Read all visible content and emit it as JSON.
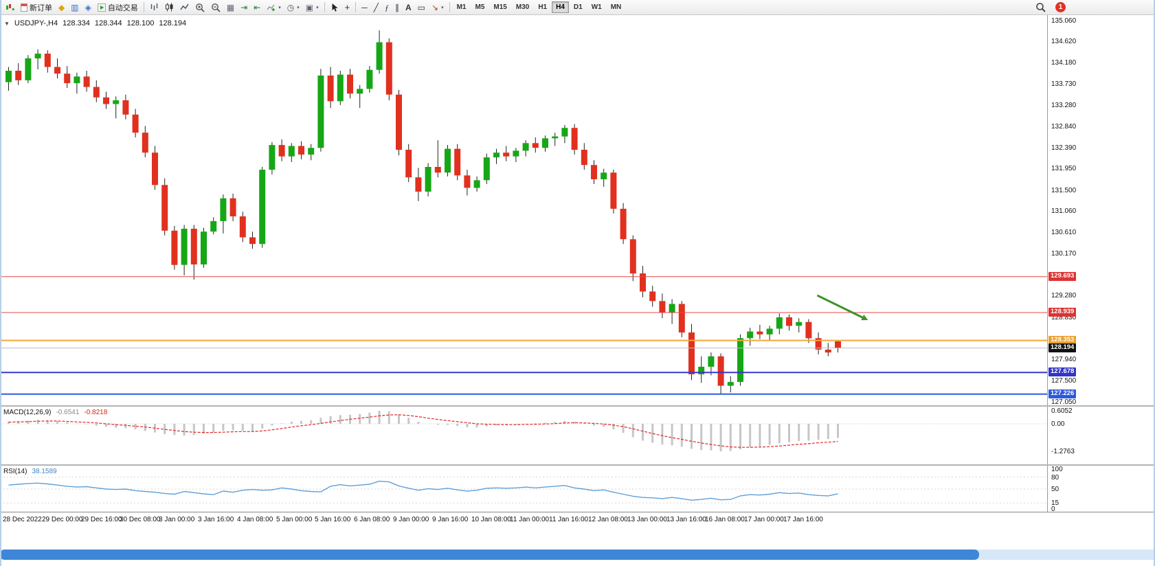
{
  "toolbar": {
    "notification_count": "1",
    "items": [
      {
        "name": "new-chart",
        "icon": "chart-plus"
      },
      {
        "name": "new-order",
        "icon": "order-doc",
        "label": "新订单"
      },
      {
        "name": "profiles",
        "icon": "profiles"
      },
      {
        "name": "market-watch",
        "icon": "market-watch"
      },
      {
        "name": "navigator",
        "icon": "navigator"
      },
      {
        "name": "auto-trading",
        "icon": "play",
        "label": "自动交易"
      },
      {
        "type": "sep"
      },
      {
        "name": "chart-bars-mode",
        "icon": "bars-mode"
      },
      {
        "name": "chart-candles-mode",
        "icon": "candles-mode"
      },
      {
        "name": "chart-line-mode",
        "icon": "line-mode"
      },
      {
        "name": "zoom-in",
        "icon": "zoom-in"
      },
      {
        "name": "zoom-out",
        "icon": "zoom-out"
      },
      {
        "name": "tile-windows",
        "icon": "tiles"
      },
      {
        "name": "auto-scroll",
        "icon": "auto-scroll"
      },
      {
        "name": "chart-shift",
        "icon": "chart-shift"
      },
      {
        "name": "indicators",
        "icon": "indicator-plus",
        "dropdown": true
      },
      {
        "name": "periods",
        "icon": "clock",
        "dropdown": true
      },
      {
        "name": "templates",
        "icon": "template",
        "dropdown": true
      },
      {
        "type": "sep"
      },
      {
        "name": "cursor",
        "icon": "cursor"
      },
      {
        "name": "crosshair",
        "icon": "crosshair"
      },
      {
        "type": "sep"
      },
      {
        "name": "horizontal-line-tool",
        "icon": "hline"
      },
      {
        "name": "trend-line-tool",
        "icon": "trendline"
      },
      {
        "name": "fibonacci-tool",
        "icon": "fibo"
      },
      {
        "name": "channel-tool",
        "icon": "channel"
      },
      {
        "name": "text-tool",
        "icon": "text"
      },
      {
        "name": "label-tool",
        "icon": "label"
      },
      {
        "name": "arrows-tool",
        "icon": "arrow",
        "dropdown": true
      },
      {
        "type": "sep"
      },
      {
        "type": "tf",
        "label": "M1"
      },
      {
        "type": "tf",
        "label": "M5"
      },
      {
        "type": "tf",
        "label": "M15"
      },
      {
        "type": "tf",
        "label": "M30"
      },
      {
        "type": "tf",
        "label": "H1"
      },
      {
        "type": "tf",
        "label": "H4",
        "active": true
      },
      {
        "type": "tf",
        "label": "D1"
      },
      {
        "type": "tf",
        "label": "W1"
      },
      {
        "type": "tf",
        "label": "MN"
      }
    ]
  },
  "chart_header": {
    "collapse_icon": "▼",
    "symbol_period": "USDJPY-,H4",
    "open": "128.334",
    "high": "128.344",
    "low": "128.100",
    "close": "128.194"
  },
  "chart_data": [
    {
      "type": "candlestick",
      "title": "USDJPY- H4",
      "ylim": [
        126.99,
        135.19
      ],
      "up_color": "#16a716",
      "down_color": "#e2301f",
      "wick_color": "#222222",
      "price_axis_labels": [
        "135.060",
        "134.620",
        "134.180",
        "133.730",
        "133.280",
        "132.840",
        "132.390",
        "131.950",
        "131.500",
        "131.060",
        "130.610",
        "130.170",
        "129.280",
        "128.830",
        "127.940",
        "127.500",
        "127.050"
      ],
      "ohlc": [
        [
          133.78,
          134.1,
          133.6,
          134.02
        ],
        [
          134.02,
          134.18,
          133.72,
          133.82
        ],
        [
          133.82,
          134.35,
          133.76,
          134.28
        ],
        [
          134.28,
          134.47,
          134.05,
          134.38
        ],
        [
          134.38,
          134.45,
          133.98,
          134.1
        ],
        [
          134.1,
          134.28,
          133.86,
          133.96
        ],
        [
          133.96,
          134.12,
          133.66,
          133.76
        ],
        [
          133.76,
          133.98,
          133.54,
          133.9
        ],
        [
          133.9,
          134.02,
          133.58,
          133.68
        ],
        [
          133.68,
          133.82,
          133.36,
          133.46
        ],
        [
          133.46,
          133.58,
          133.22,
          133.32
        ],
        [
          133.32,
          133.48,
          133.02,
          133.4
        ],
        [
          133.4,
          133.52,
          133.0,
          133.1
        ],
        [
          133.1,
          133.22,
          132.62,
          132.72
        ],
        [
          132.72,
          132.86,
          132.2,
          132.3
        ],
        [
          132.3,
          132.44,
          131.52,
          131.62
        ],
        [
          131.62,
          131.76,
          130.56,
          130.66
        ],
        [
          130.66,
          130.76,
          129.84,
          129.94
        ],
        [
          129.94,
          130.78,
          129.72,
          130.7
        ],
        [
          130.7,
          130.78,
          129.63,
          129.95
        ],
        [
          129.95,
          130.72,
          129.88,
          130.64
        ],
        [
          130.64,
          130.94,
          130.58,
          130.86
        ],
        [
          130.86,
          131.42,
          130.6,
          131.34
        ],
        [
          131.34,
          131.44,
          130.86,
          130.96
        ],
        [
          130.96,
          131.06,
          130.42,
          130.52
        ],
        [
          130.52,
          130.64,
          130.28,
          130.38
        ],
        [
          130.38,
          132.0,
          130.3,
          131.94
        ],
        [
          131.94,
          132.52,
          131.84,
          132.46
        ],
        [
          132.46,
          132.58,
          132.12,
          132.22
        ],
        [
          132.22,
          132.5,
          132.1,
          132.44
        ],
        [
          132.44,
          132.54,
          132.16,
          132.26
        ],
        [
          132.26,
          132.48,
          132.14,
          132.4
        ],
        [
          132.4,
          134.06,
          132.32,
          133.92
        ],
        [
          133.92,
          134.1,
          133.24,
          133.38
        ],
        [
          133.38,
          134.02,
          133.3,
          133.94
        ],
        [
          133.94,
          134.06,
          133.44,
          133.54
        ],
        [
          133.54,
          133.72,
          133.24,
          133.64
        ],
        [
          133.64,
          134.12,
          133.56,
          134.04
        ],
        [
          134.04,
          134.87,
          133.96,
          134.62
        ],
        [
          134.62,
          134.7,
          133.4,
          133.52
        ],
        [
          133.52,
          133.62,
          132.24,
          132.36
        ],
        [
          132.36,
          132.48,
          131.68,
          131.78
        ],
        [
          131.78,
          131.98,
          131.28,
          131.48
        ],
        [
          131.48,
          132.08,
          131.38,
          132.0
        ],
        [
          132.0,
          132.56,
          131.78,
          131.88
        ],
        [
          131.88,
          132.46,
          131.8,
          132.38
        ],
        [
          132.38,
          132.48,
          131.72,
          131.82
        ],
        [
          131.82,
          131.94,
          131.4,
          131.56
        ],
        [
          131.56,
          131.8,
          131.48,
          131.72
        ],
        [
          131.72,
          132.28,
          131.64,
          132.2
        ],
        [
          132.2,
          132.38,
          132.06,
          132.3
        ],
        [
          132.3,
          132.44,
          132.12,
          132.22
        ],
        [
          132.22,
          132.4,
          132.1,
          132.34
        ],
        [
          132.34,
          132.56,
          132.22,
          132.5
        ],
        [
          132.5,
          132.62,
          132.3,
          132.4
        ],
        [
          132.4,
          132.66,
          132.32,
          132.6
        ],
        [
          132.6,
          132.72,
          132.44,
          132.64
        ],
        [
          132.64,
          132.88,
          132.5,
          132.82
        ],
        [
          132.82,
          132.9,
          132.26,
          132.36
        ],
        [
          132.36,
          132.5,
          131.94,
          132.04
        ],
        [
          132.04,
          132.14,
          131.64,
          131.74
        ],
        [
          131.74,
          131.96,
          131.58,
          131.88
        ],
        [
          131.88,
          131.94,
          131.02,
          131.12
        ],
        [
          131.12,
          131.24,
          130.38,
          130.48
        ],
        [
          130.48,
          130.56,
          129.6,
          129.76
        ],
        [
          129.76,
          129.92,
          129.26,
          129.38
        ],
        [
          129.38,
          129.5,
          129.06,
          129.18
        ],
        [
          129.18,
          129.34,
          128.82,
          128.94
        ],
        [
          128.94,
          129.22,
          128.7,
          129.12
        ],
        [
          129.12,
          129.18,
          128.42,
          128.52
        ],
        [
          128.52,
          128.7,
          127.52,
          127.64
        ],
        [
          127.64,
          128.02,
          127.46,
          127.8
        ],
        [
          127.8,
          128.1,
          127.62,
          128.02
        ],
        [
          128.02,
          128.08,
          127.23,
          127.4
        ],
        [
          127.4,
          127.6,
          127.26,
          127.48
        ],
        [
          127.48,
          128.48,
          127.4,
          128.4
        ],
        [
          128.4,
          128.62,
          128.24,
          128.54
        ],
        [
          128.54,
          128.68,
          128.38,
          128.48
        ],
        [
          128.48,
          128.66,
          128.36,
          128.6
        ],
        [
          128.6,
          128.92,
          128.48,
          128.84
        ],
        [
          128.84,
          128.9,
          128.56,
          128.66
        ],
        [
          128.66,
          128.82,
          128.52,
          128.74
        ],
        [
          128.74,
          128.8,
          128.3,
          128.4
        ],
        [
          128.4,
          128.52,
          128.06,
          128.16
        ],
        [
          128.16,
          128.3,
          128.02,
          128.1
        ],
        [
          128.334,
          128.344,
          128.1,
          128.194
        ]
      ],
      "hlines": [
        {
          "price": 129.693,
          "label": "129.693",
          "color": "#e84545",
          "badge_color": "#dd3333",
          "width": 1
        },
        {
          "price": 128.939,
          "label": "128.939",
          "color": "#e84545",
          "badge_color": "#dd3333",
          "width": 1
        },
        {
          "price": 128.353,
          "label": "128.353",
          "color": "#f2a93b",
          "badge_color": "#eca02c",
          "width": 2
        },
        {
          "price": 128.194,
          "label": "128.194",
          "color": "#bcbcbc",
          "badge_color": "#111111",
          "width": 1
        },
        {
          "price": 127.678,
          "label": "127.678",
          "color": "#3636c9",
          "badge_color": "#3434c6",
          "width": 2
        },
        {
          "price": 127.226,
          "label": "127.226",
          "color": "#2f5bdc",
          "badge_color": "#2d59da",
          "width": 2
        }
      ],
      "arrow_annotation": {
        "from_bar": 83.2,
        "from_price": 129.3,
        "to_bar": 88.4,
        "to_price": 128.78,
        "color": "#3e9427"
      }
    },
    {
      "type": "bar",
      "name": "MACD(12,26,9)",
      "value_main": "-0.6541",
      "value_signal": "-0.8218",
      "axis_labels": [
        "0.6052",
        "0.00",
        "-1.2763"
      ],
      "histogram_color": "#c6c6c6",
      "signal_color": "#e02626",
      "histogram": [
        0.1,
        0.12,
        0.15,
        0.18,
        0.16,
        0.12,
        0.06,
        0.02,
        -0.02,
        -0.08,
        -0.14,
        -0.18,
        -0.2,
        -0.26,
        -0.33,
        -0.4,
        -0.48,
        -0.52,
        -0.55,
        -0.52,
        -0.46,
        -0.4,
        -0.32,
        -0.3,
        -0.32,
        -0.34,
        -0.22,
        -0.08,
        0.02,
        0.1,
        0.14,
        0.17,
        0.28,
        0.36,
        0.4,
        0.42,
        0.46,
        0.52,
        0.605,
        0.58,
        0.44,
        0.28,
        0.1,
        0.0,
        -0.04,
        -0.05,
        -0.1,
        -0.16,
        -0.17,
        -0.12,
        -0.07,
        -0.05,
        -0.04,
        -0.01,
        0.02,
        0.05,
        0.09,
        0.13,
        0.1,
        0.02,
        -0.08,
        -0.14,
        -0.26,
        -0.42,
        -0.62,
        -0.78,
        -0.88,
        -0.96,
        -1.0,
        -1.06,
        -1.16,
        -1.22,
        -1.23,
        -1.2763,
        -1.26,
        -1.18,
        -1.1,
        -1.05,
        -0.98,
        -0.9,
        -0.85,
        -0.8,
        -0.78,
        -0.74,
        -0.7,
        -0.6541
      ],
      "signal": [
        0.08,
        0.09,
        0.1,
        0.12,
        0.13,
        0.13,
        0.11,
        0.09,
        0.07,
        0.04,
        0.0,
        -0.04,
        -0.07,
        -0.11,
        -0.15,
        -0.2,
        -0.26,
        -0.31,
        -0.36,
        -0.39,
        -0.4,
        -0.4,
        -0.39,
        -0.37,
        -0.36,
        -0.36,
        -0.33,
        -0.28,
        -0.22,
        -0.15,
        -0.09,
        -0.04,
        0.02,
        0.09,
        0.15,
        0.21,
        0.26,
        0.31,
        0.37,
        0.41,
        0.42,
        0.39,
        0.33,
        0.26,
        0.2,
        0.15,
        0.1,
        0.05,
        0.0,
        -0.02,
        -0.03,
        -0.04,
        -0.04,
        -0.03,
        -0.02,
        -0.01,
        0.01,
        0.04,
        0.05,
        0.04,
        0.02,
        -0.01,
        -0.06,
        -0.13,
        -0.23,
        -0.34,
        -0.45,
        -0.55,
        -0.64,
        -0.72,
        -0.81,
        -0.89,
        -0.96,
        -1.02,
        -1.07,
        -1.09,
        -1.09,
        -1.08,
        -1.06,
        -1.03,
        -0.99,
        -0.95,
        -0.92,
        -0.88,
        -0.85,
        -0.8218
      ]
    },
    {
      "type": "line",
      "name": "RSI(14)",
      "value": "38.1589",
      "axis_labels": [
        "100",
        "80",
        "50",
        "15",
        "0"
      ],
      "line_color": "#5f9fd8",
      "values": [
        60,
        62,
        64,
        65,
        63,
        60,
        57,
        55,
        56,
        53,
        50,
        49,
        50,
        46,
        44,
        42,
        39,
        37,
        44,
        41,
        38,
        36,
        45,
        42,
        47,
        49,
        47,
        48,
        53,
        50,
        46,
        44,
        43,
        57,
        61,
        58,
        60,
        62,
        70,
        68,
        58,
        52,
        47,
        51,
        49,
        52,
        48,
        45,
        47,
        52,
        53,
        52,
        53,
        55,
        53,
        55,
        57,
        59,
        53,
        50,
        46,
        48,
        42,
        37,
        32,
        29,
        28,
        26,
        29,
        26,
        22,
        24,
        27,
        23,
        24,
        33,
        36,
        35,
        37,
        41,
        39,
        40,
        36,
        34,
        33,
        38.16
      ]
    }
  ],
  "time_axis": {
    "labels": [
      "28 Dec 2022",
      "29 Dec 00:00",
      "29 Dec 16:00",
      "30 Dec 08:00",
      "3 Jan 00:00",
      "3 Jan 16:00",
      "4 Jan 08:00",
      "5 Jan 00:00",
      "5 Jan 16:00",
      "6 Jan 08:00",
      "9 Jan 00:00",
      "9 Jan 16:00",
      "10 Jan 08:00",
      "11 Jan 00:00",
      "11 Jan 16:00",
      "12 Jan 08:00",
      "13 Jan 00:00",
      "13 Jan 16:00",
      "16 Jan 08:00",
      "17 Jan 00:00",
      "17 Jan 16:00"
    ]
  }
}
